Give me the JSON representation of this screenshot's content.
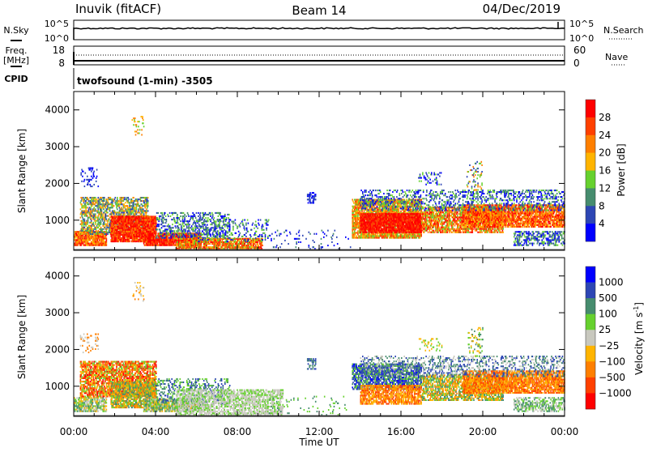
{
  "header": {
    "station": "Inuvik (fitACF)",
    "beam": "Beam 14",
    "date": "04/Dec/2019"
  },
  "noise_panel": {
    "left_label": "N.Sky",
    "left_ticks": [
      "10^5",
      "10^0"
    ],
    "right_label": "N.Search",
    "right_ticks": [
      "10^5",
      "10^0"
    ]
  },
  "freq_panel": {
    "left_label_1": "Freq.",
    "left_label_2": "[MHz]",
    "left_ticks": [
      "18",
      "8"
    ],
    "right_label": "Nave",
    "right_ticks": [
      "60",
      "0"
    ]
  },
  "cpid": {
    "label": "CPID",
    "value": "twofsound (1-min) -3505"
  },
  "chart_data": [
    {
      "type": "heatmap",
      "title": "Power",
      "xlabel": "Time UT",
      "ylabel": "Slant Range [km]",
      "xlim": [
        0,
        24
      ],
      "ylim": [
        180,
        4500
      ],
      "xticks": [
        "00:00",
        "04:00",
        "08:00",
        "12:00",
        "16:00",
        "20:00",
        "00:00"
      ],
      "yticks": [
        "1000",
        "2000",
        "3000",
        "4000"
      ],
      "colorbar": {
        "label": "Power [dB]",
        "ticks": [
          "28",
          "24",
          "20",
          "16",
          "12",
          "8",
          "4"
        ],
        "colors": [
          "#ff0000",
          "#ff4000",
          "#ff7f00",
          "#ffb400",
          "#66d12e",
          "#468c6e",
          "#2d46b4",
          "#0000ff"
        ]
      },
      "regions": [
        {
          "t": [
            0.0,
            1.6
          ],
          "r": [
            300,
            700
          ],
          "levels": [
            0,
            1,
            2,
            3
          ],
          "density": 0.8
        },
        {
          "t": [
            0.3,
            3.6
          ],
          "r": [
            600,
            1600
          ],
          "levels": [
            2,
            3,
            4,
            5,
            6
          ],
          "density": 0.5
        },
        {
          "t": [
            1.8,
            4.0
          ],
          "r": [
            400,
            1100
          ],
          "levels": [
            0,
            0,
            1,
            2
          ],
          "density": 0.85
        },
        {
          "t": [
            3.4,
            6.2
          ],
          "r": [
            300,
            650
          ],
          "levels": [
            0,
            0,
            1,
            2
          ],
          "density": 0.8
        },
        {
          "t": [
            4.0,
            7.6
          ],
          "r": [
            500,
            1200
          ],
          "levels": [
            5,
            6,
            7,
            4
          ],
          "density": 0.3
        },
        {
          "t": [
            5.0,
            9.2
          ],
          "r": [
            200,
            480
          ],
          "levels": [
            0,
            1,
            2,
            3,
            4
          ],
          "density": 0.7
        },
        {
          "t": [
            6.0,
            9.5
          ],
          "r": [
            400,
            1000
          ],
          "levels": [
            4,
            5,
            6,
            7
          ],
          "density": 0.15
        },
        {
          "t": [
            9.5,
            13.5
          ],
          "r": [
            200,
            700
          ],
          "levels": [
            5,
            6,
            7
          ],
          "density": 0.05
        },
        {
          "t": [
            13.6,
            17.0
          ],
          "r": [
            500,
            1550
          ],
          "levels": [
            1,
            2,
            3,
            4
          ],
          "density": 0.7
        },
        {
          "t": [
            14.0,
            17.0
          ],
          "r": [
            650,
            1150
          ],
          "levels": [
            0,
            0,
            1
          ],
          "density": 0.75
        },
        {
          "t": [
            17.0,
            21.0
          ],
          "r": [
            650,
            1350
          ],
          "levels": [
            2,
            3,
            4,
            0,
            1
          ],
          "density": 0.6
        },
        {
          "t": [
            19.0,
            24.0
          ],
          "r": [
            800,
            1400
          ],
          "levels": [
            0,
            1,
            2,
            3
          ],
          "density": 0.7
        },
        {
          "t": [
            14.0,
            24.0
          ],
          "r": [
            1250,
            1800
          ],
          "levels": [
            6,
            7,
            5,
            4
          ],
          "density": 0.25
        },
        {
          "t": [
            21.5,
            24.0
          ],
          "r": [
            300,
            700
          ],
          "levels": [
            5,
            6,
            7,
            4
          ],
          "density": 0.4
        },
        {
          "t": [
            0.3,
            1.2
          ],
          "r": [
            1900,
            2400
          ],
          "levels": [
            6,
            7
          ],
          "density": 0.15
        },
        {
          "t": [
            2.8,
            3.4
          ],
          "r": [
            3300,
            3800
          ],
          "levels": [
            2,
            3,
            4
          ],
          "density": 0.12
        },
        {
          "t": [
            11.4,
            11.8
          ],
          "r": [
            1450,
            1750
          ],
          "levels": [
            6,
            7
          ],
          "density": 0.4
        },
        {
          "t": [
            16.8,
            18.0
          ],
          "r": [
            1950,
            2300
          ],
          "levels": [
            6,
            7,
            4
          ],
          "density": 0.15
        },
        {
          "t": [
            19.2,
            20.0
          ],
          "r": [
            1800,
            2600
          ],
          "levels": [
            6,
            4,
            2
          ],
          "density": 0.12
        }
      ]
    },
    {
      "type": "heatmap",
      "title": "Velocity",
      "xlabel": "Time UT",
      "ylabel": "Slant Range [km]",
      "xlim": [
        0,
        24
      ],
      "ylim": [
        180,
        4500
      ],
      "xticks": [
        "00:00",
        "04:00",
        "08:00",
        "12:00",
        "16:00",
        "20:00",
        "00:00"
      ],
      "yticks": [
        "1000",
        "2000",
        "3000",
        "4000"
      ],
      "colorbar": {
        "label": "Velocity [m s^-1]",
        "ticks": [
          "1000",
          "500",
          "100",
          "25",
          "-25",
          "-100",
          "-500",
          "-1000"
        ],
        "colors": [
          "#0000ff",
          "#2d46b4",
          "#468c6e",
          "#66d12e",
          "#c8c8be",
          "#ffb400",
          "#ff7f00",
          "#ff4000",
          "#ff0000"
        ]
      },
      "regions": [
        {
          "t": [
            0.0,
            1.6
          ],
          "r": [
            300,
            700
          ],
          "levels": [
            3,
            4,
            5,
            2
          ],
          "density": 0.6
        },
        {
          "t": [
            0.3,
            4.0
          ],
          "r": [
            700,
            1650
          ],
          "levels": [
            6,
            7,
            5,
            8,
            3
          ],
          "density": 0.6
        },
        {
          "t": [
            1.8,
            4.0
          ],
          "r": [
            400,
            1100
          ],
          "levels": [
            5,
            6,
            3,
            2
          ],
          "density": 0.7
        },
        {
          "t": [
            3.4,
            6.2
          ],
          "r": [
            300,
            650
          ],
          "levels": [
            3,
            2,
            4,
            5
          ],
          "density": 0.7
        },
        {
          "t": [
            4.0,
            7.6
          ],
          "r": [
            500,
            1200
          ],
          "levels": [
            2,
            3,
            1
          ],
          "density": 0.25
        },
        {
          "t": [
            5.0,
            10.2
          ],
          "r": [
            200,
            900
          ],
          "levels": [
            4,
            4,
            3
          ],
          "density": 0.5
        },
        {
          "t": [
            9.5,
            13.5
          ],
          "r": [
            200,
            700
          ],
          "levels": [
            2,
            3
          ],
          "density": 0.05
        },
        {
          "t": [
            13.6,
            17.0
          ],
          "r": [
            900,
            1600
          ],
          "levels": [
            1,
            2,
            0,
            3
          ],
          "density": 0.6
        },
        {
          "t": [
            14.0,
            17.0
          ],
          "r": [
            500,
            1000
          ],
          "levels": [
            6,
            5,
            7
          ],
          "density": 0.6
        },
        {
          "t": [
            17.0,
            21.0
          ],
          "r": [
            600,
            1300
          ],
          "levels": [
            6,
            5,
            2,
            3
          ],
          "density": 0.55
        },
        {
          "t": [
            19.0,
            24.0
          ],
          "r": [
            800,
            1400
          ],
          "levels": [
            6,
            5,
            7
          ],
          "density": 0.7
        },
        {
          "t": [
            14.0,
            24.0
          ],
          "r": [
            1250,
            1800
          ],
          "levels": [
            4,
            1,
            2
          ],
          "density": 0.25
        },
        {
          "t": [
            21.5,
            24.0
          ],
          "r": [
            300,
            700
          ],
          "levels": [
            2,
            3,
            4
          ],
          "density": 0.4
        },
        {
          "t": [
            0.3,
            1.2
          ],
          "r": [
            1900,
            2400
          ],
          "levels": [
            4,
            6
          ],
          "density": 0.15
        },
        {
          "t": [
            2.8,
            3.4
          ],
          "r": [
            3300,
            3800
          ],
          "levels": [
            5,
            6,
            4
          ],
          "density": 0.12
        },
        {
          "t": [
            11.4,
            11.8
          ],
          "r": [
            1450,
            1750
          ],
          "levels": [
            1,
            2
          ],
          "density": 0.4
        },
        {
          "t": [
            16.8,
            18.0
          ],
          "r": [
            1950,
            2300
          ],
          "levels": [
            3,
            5
          ],
          "density": 0.15
        },
        {
          "t": [
            19.2,
            20.0
          ],
          "r": [
            1800,
            2600
          ],
          "levels": [
            3,
            5,
            2
          ],
          "density": 0.12
        }
      ]
    }
  ]
}
